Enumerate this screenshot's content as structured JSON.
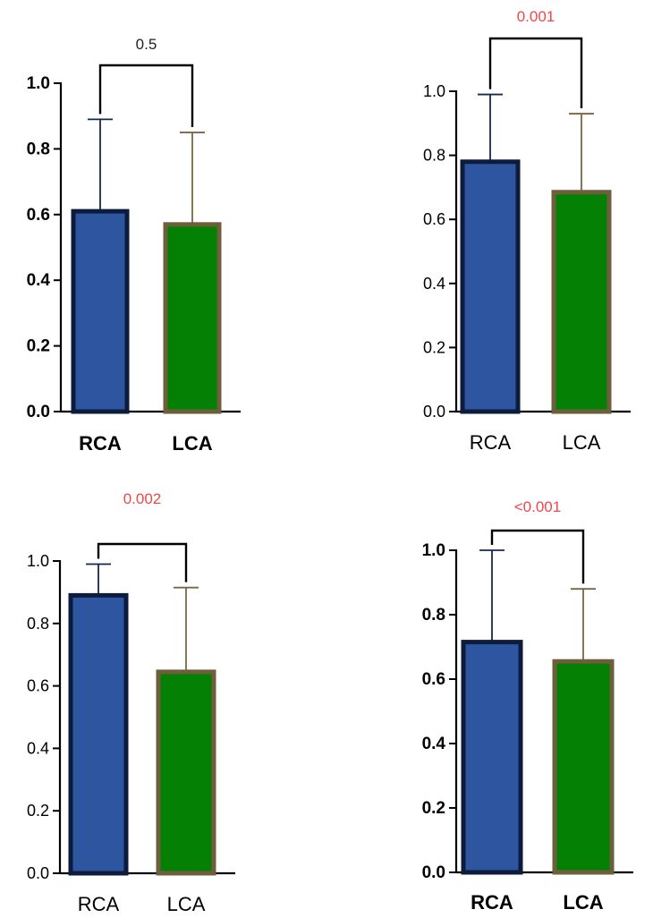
{
  "colors": {
    "rca_fill": "#2E55A0",
    "rca_border": "#0D1C3C",
    "rca_error": "#14284E",
    "lca_fill": "#048004",
    "lca_border": "#6E5E3C",
    "lca_error": "#7A6642",
    "axis": "#000000",
    "p_black": "#222222",
    "p_red": "#F0464A"
  },
  "chart_data": [
    {
      "type": "bar",
      "categories": [
        "RCA",
        "LCA"
      ],
      "values": [
        0.61,
        0.57
      ],
      "errors_upper": [
        0.89,
        0.85
      ],
      "ylim": [
        0,
        1.0
      ],
      "yticks": [
        "0.0",
        "0.2",
        "0.4",
        "0.6",
        "0.8",
        "1.0"
      ],
      "bold_labels": true,
      "p_value": "0.5",
      "p_color": "black",
      "bracket_direction": "down"
    },
    {
      "type": "bar",
      "categories": [
        "RCA",
        "LCA"
      ],
      "values": [
        0.78,
        0.685
      ],
      "errors_upper": [
        0.99,
        0.93
      ],
      "ylim": [
        0,
        1.0
      ],
      "yticks": [
        "0.0",
        "0.2",
        "0.4",
        "0.6",
        "0.8",
        "1.0"
      ],
      "bold_labels": false,
      "p_value": "0.001",
      "p_color": "red",
      "bracket_direction": "down"
    },
    {
      "type": "bar",
      "categories": [
        "RCA",
        "LCA"
      ],
      "values": [
        0.89,
        0.645
      ],
      "errors_upper": [
        0.99,
        0.915
      ],
      "ylim": [
        0,
        1.0
      ],
      "yticks": [
        "0.0",
        "0.2",
        "0.4",
        "0.6",
        "0.8",
        "1.0"
      ],
      "bold_labels": false,
      "p_value": "0.002",
      "p_color": "red",
      "bracket_direction": "down"
    },
    {
      "type": "bar",
      "categories": [
        "RCA",
        "LCA"
      ],
      "values": [
        0.715,
        0.655
      ],
      "errors_upper": [
        1.0,
        0.88
      ],
      "ylim": [
        0,
        1.0
      ],
      "yticks": [
        "0.0",
        "0.2",
        "0.4",
        "0.6",
        "0.8",
        "1.0"
      ],
      "bold_labels": true,
      "p_value": "<0.001",
      "p_color": "red",
      "bracket_direction": "down"
    }
  ]
}
